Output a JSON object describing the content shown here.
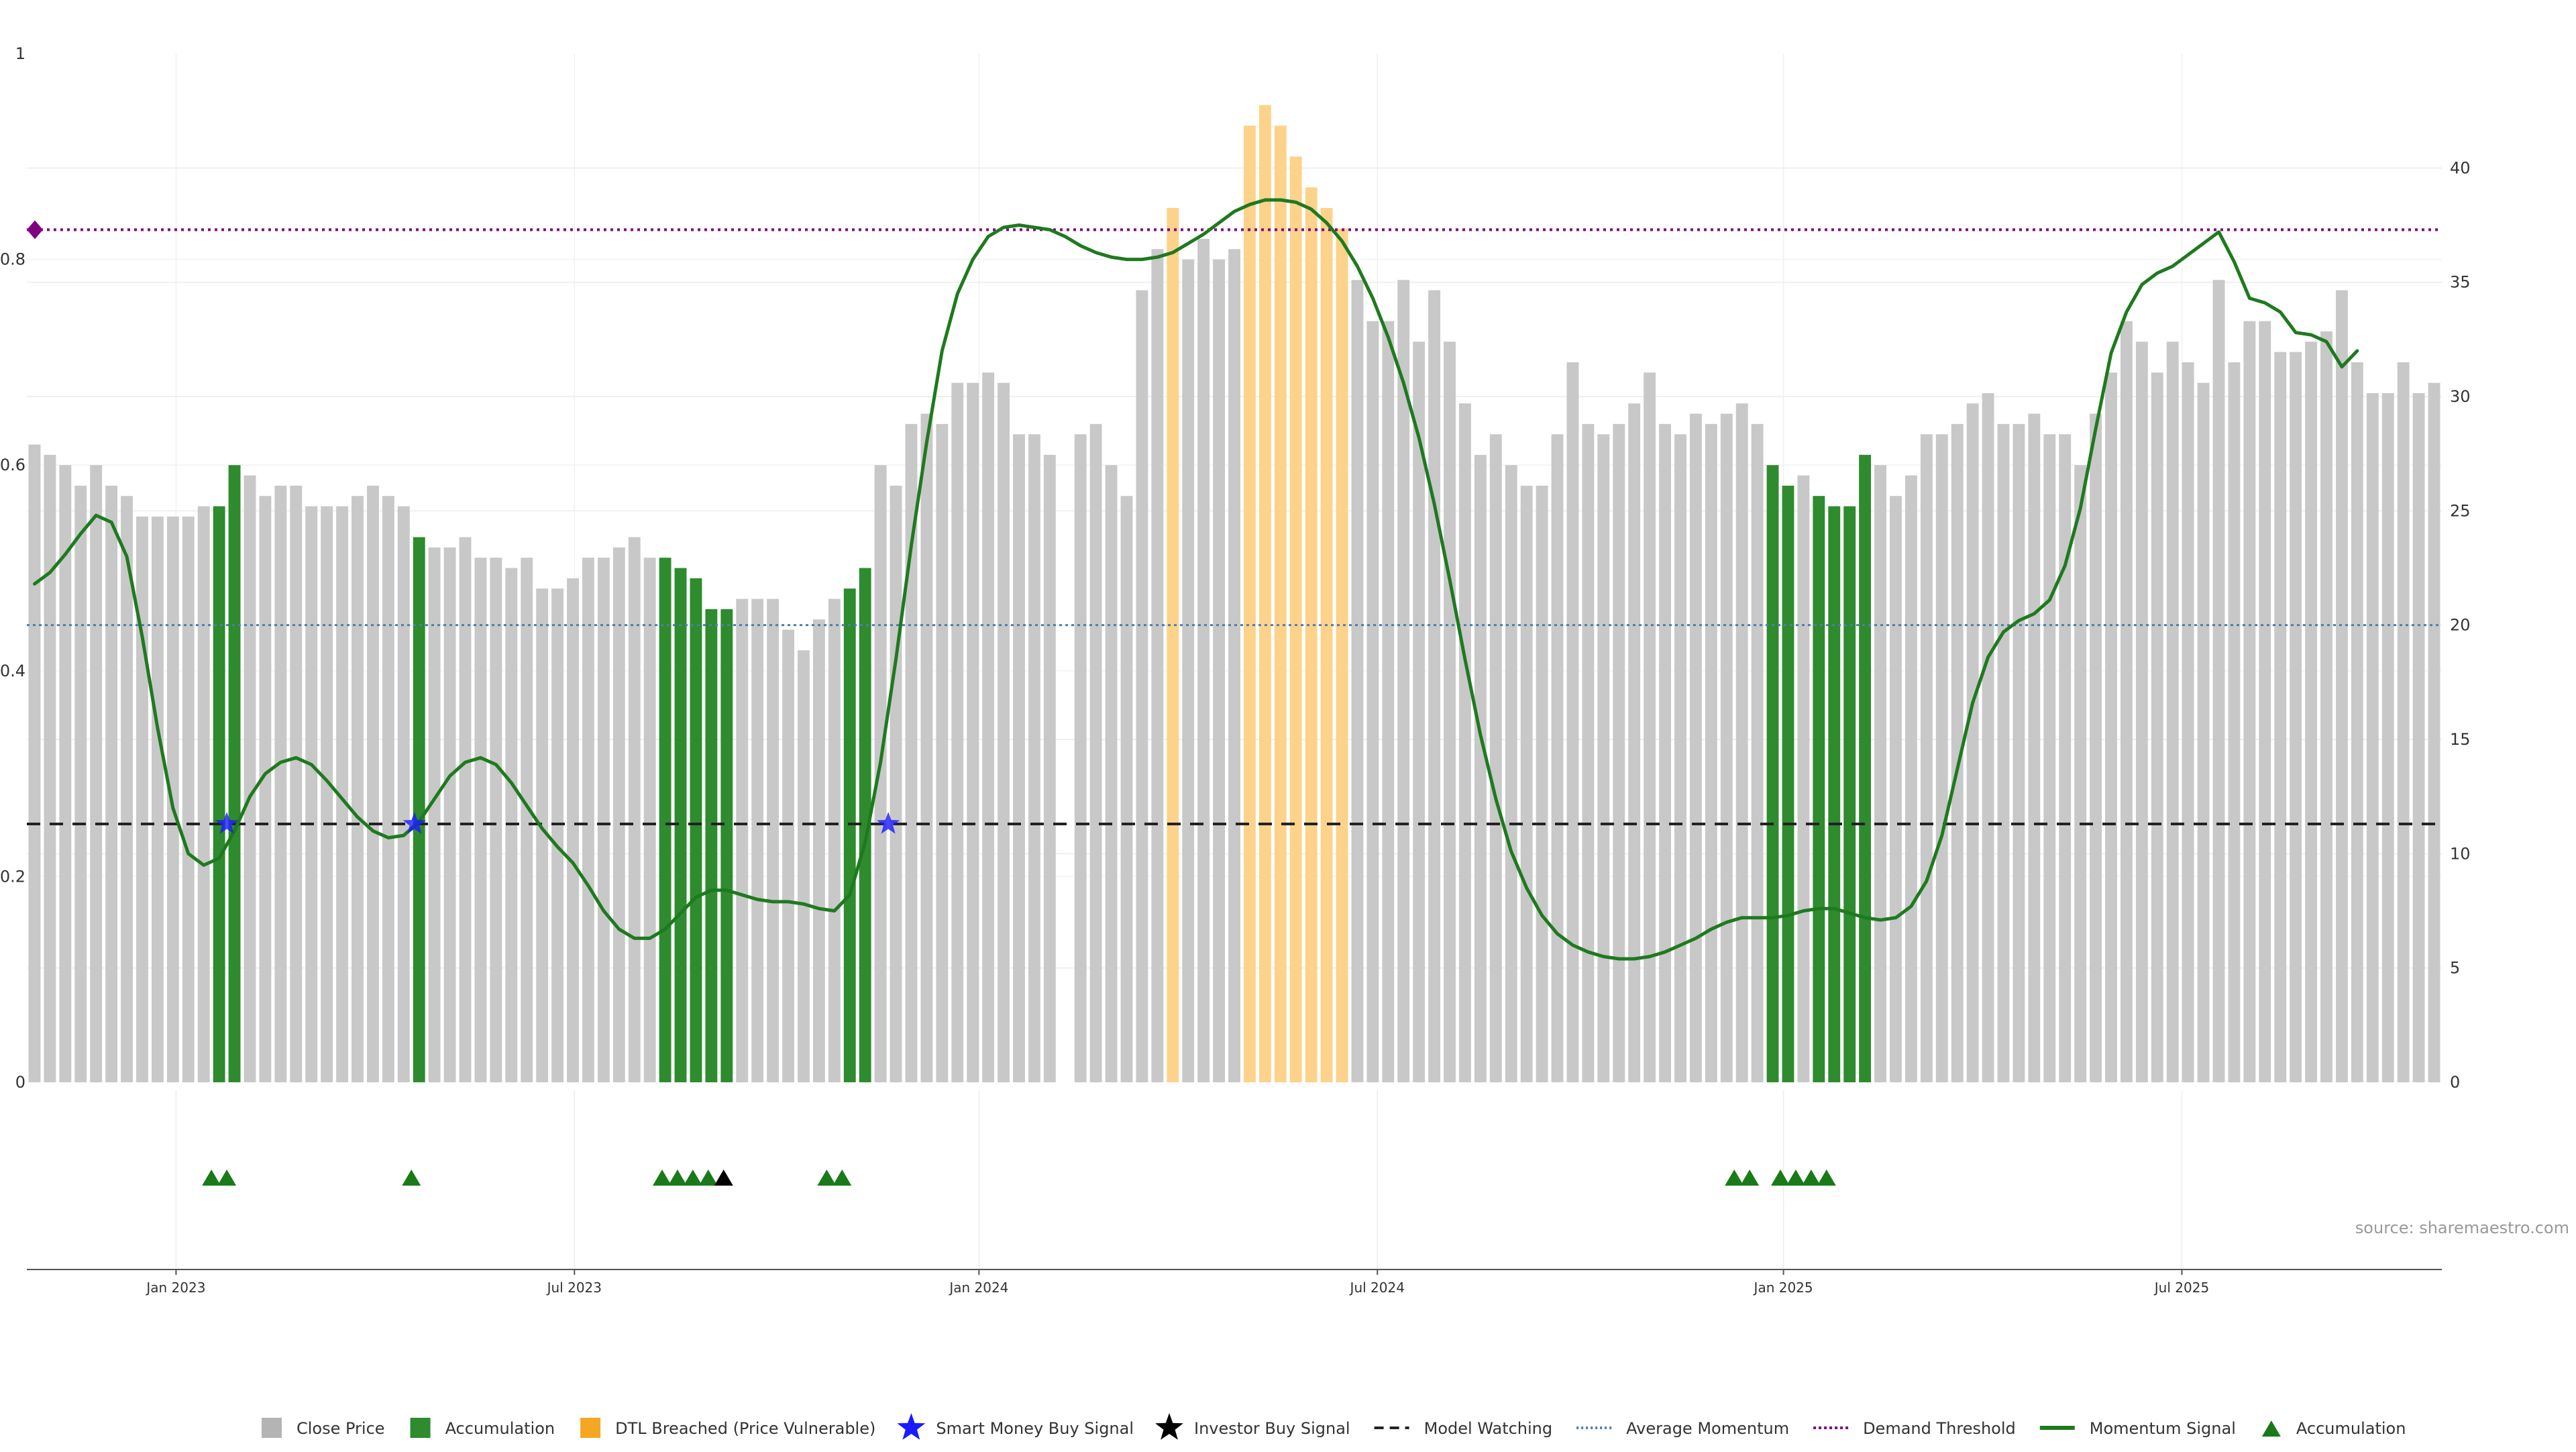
{
  "chart_data": {
    "type": "bar",
    "source": "source: sharemaestro.com",
    "y_left": {
      "range": [
        0,
        1
      ],
      "ticks": [
        "0",
        "0.2",
        "0.4",
        "0.6",
        "0.8",
        "1"
      ],
      "tick_values": [
        0,
        0.2,
        0.4,
        0.6,
        0.8,
        1
      ]
    },
    "y_right": {
      "range": [
        0,
        45
      ],
      "ticks": [
        "0",
        "5",
        "10",
        "15",
        "20",
        "25",
        "30",
        "35",
        "40"
      ],
      "tick_values": [
        0,
        5,
        10,
        15,
        20,
        25,
        30,
        35,
        40
      ]
    },
    "x_ticks": [
      {
        "label": "Jan 2023",
        "index": 9.2
      },
      {
        "label": "Jul 2023",
        "index": 35.1
      },
      {
        "label": "Jan 2024",
        "index": 61.4
      },
      {
        "label": "Jul 2024",
        "index": 87.3
      },
      {
        "label": "Jan 2025",
        "index": 113.7
      },
      {
        "label": "Jul 2025",
        "index": 139.6
      }
    ],
    "bars": [
      {
        "v": 0.62,
        "c": "gray"
      },
      {
        "v": 0.61,
        "c": "gray"
      },
      {
        "v": 0.6,
        "c": "gray"
      },
      {
        "v": 0.58,
        "c": "gray"
      },
      {
        "v": 0.6,
        "c": "gray"
      },
      {
        "v": 0.58,
        "c": "gray"
      },
      {
        "v": 0.57,
        "c": "gray"
      },
      {
        "v": 0.55,
        "c": "gray"
      },
      {
        "v": 0.55,
        "c": "gray"
      },
      {
        "v": 0.55,
        "c": "gray"
      },
      {
        "v": 0.55,
        "c": "gray"
      },
      {
        "v": 0.56,
        "c": "gray"
      },
      {
        "v": 0.56,
        "c": "green"
      },
      {
        "v": 0.6,
        "c": "green"
      },
      {
        "v": 0.59,
        "c": "gray"
      },
      {
        "v": 0.57,
        "c": "gray"
      },
      {
        "v": 0.58,
        "c": "gray"
      },
      {
        "v": 0.58,
        "c": "gray"
      },
      {
        "v": 0.56,
        "c": "gray"
      },
      {
        "v": 0.56,
        "c": "gray"
      },
      {
        "v": 0.56,
        "c": "gray"
      },
      {
        "v": 0.57,
        "c": "gray"
      },
      {
        "v": 0.58,
        "c": "gray"
      },
      {
        "v": 0.57,
        "c": "gray"
      },
      {
        "v": 0.56,
        "c": "gray"
      },
      {
        "v": 0.53,
        "c": "green"
      },
      {
        "v": 0.52,
        "c": "gray"
      },
      {
        "v": 0.52,
        "c": "gray"
      },
      {
        "v": 0.53,
        "c": "gray"
      },
      {
        "v": 0.51,
        "c": "gray"
      },
      {
        "v": 0.51,
        "c": "gray"
      },
      {
        "v": 0.5,
        "c": "gray"
      },
      {
        "v": 0.51,
        "c": "gray"
      },
      {
        "v": 0.48,
        "c": "gray"
      },
      {
        "v": 0.48,
        "c": "gray"
      },
      {
        "v": 0.49,
        "c": "gray"
      },
      {
        "v": 0.51,
        "c": "gray"
      },
      {
        "v": 0.51,
        "c": "gray"
      },
      {
        "v": 0.52,
        "c": "gray"
      },
      {
        "v": 0.53,
        "c": "gray"
      },
      {
        "v": 0.51,
        "c": "gray"
      },
      {
        "v": 0.51,
        "c": "green"
      },
      {
        "v": 0.5,
        "c": "green"
      },
      {
        "v": 0.49,
        "c": "green"
      },
      {
        "v": 0.46,
        "c": "green"
      },
      {
        "v": 0.46,
        "c": "green"
      },
      {
        "v": 0.47,
        "c": "gray"
      },
      {
        "v": 0.47,
        "c": "gray"
      },
      {
        "v": 0.47,
        "c": "gray"
      },
      {
        "v": 0.44,
        "c": "gray"
      },
      {
        "v": 0.42,
        "c": "gray"
      },
      {
        "v": 0.45,
        "c": "gray"
      },
      {
        "v": 0.47,
        "c": "gray"
      },
      {
        "v": 0.48,
        "c": "green"
      },
      {
        "v": 0.5,
        "c": "green"
      },
      {
        "v": 0.6,
        "c": "gray"
      },
      {
        "v": 0.58,
        "c": "gray"
      },
      {
        "v": 0.64,
        "c": "gray"
      },
      {
        "v": 0.65,
        "c": "gray"
      },
      {
        "v": 0.64,
        "c": "gray"
      },
      {
        "v": 0.68,
        "c": "gray"
      },
      {
        "v": 0.68,
        "c": "gray"
      },
      {
        "v": 0.69,
        "c": "gray"
      },
      {
        "v": 0.68,
        "c": "gray"
      },
      {
        "v": 0.63,
        "c": "gray"
      },
      {
        "v": 0.63,
        "c": "gray"
      },
      {
        "v": 0.61,
        "c": "gray"
      },
      {
        "v": 0,
        "c": "gray"
      },
      {
        "v": 0.63,
        "c": "gray"
      },
      {
        "v": 0.64,
        "c": "gray"
      },
      {
        "v": 0.6,
        "c": "gray"
      },
      {
        "v": 0.57,
        "c": "gray"
      },
      {
        "v": 0.77,
        "c": "gray"
      },
      {
        "v": 0.81,
        "c": "gray"
      },
      {
        "v": 0.85,
        "c": "orange"
      },
      {
        "v": 0.8,
        "c": "gray"
      },
      {
        "v": 0.82,
        "c": "gray"
      },
      {
        "v": 0.8,
        "c": "gray"
      },
      {
        "v": 0.81,
        "c": "gray"
      },
      {
        "v": 0.93,
        "c": "orange"
      },
      {
        "v": 0.95,
        "c": "orange"
      },
      {
        "v": 0.93,
        "c": "orange"
      },
      {
        "v": 0.9,
        "c": "orange"
      },
      {
        "v": 0.87,
        "c": "orange"
      },
      {
        "v": 0.85,
        "c": "orange"
      },
      {
        "v": 0.83,
        "c": "orange"
      },
      {
        "v": 0.78,
        "c": "gray"
      },
      {
        "v": 0.74,
        "c": "gray"
      },
      {
        "v": 0.74,
        "c": "gray"
      },
      {
        "v": 0.78,
        "c": "gray"
      },
      {
        "v": 0.72,
        "c": "gray"
      },
      {
        "v": 0.77,
        "c": "gray"
      },
      {
        "v": 0.72,
        "c": "gray"
      },
      {
        "v": 0.66,
        "c": "gray"
      },
      {
        "v": 0.61,
        "c": "gray"
      },
      {
        "v": 0.63,
        "c": "gray"
      },
      {
        "v": 0.6,
        "c": "gray"
      },
      {
        "v": 0.58,
        "c": "gray"
      },
      {
        "v": 0.58,
        "c": "gray"
      },
      {
        "v": 0.63,
        "c": "gray"
      },
      {
        "v": 0.7,
        "c": "gray"
      },
      {
        "v": 0.64,
        "c": "gray"
      },
      {
        "v": 0.63,
        "c": "gray"
      },
      {
        "v": 0.64,
        "c": "gray"
      },
      {
        "v": 0.66,
        "c": "gray"
      },
      {
        "v": 0.69,
        "c": "gray"
      },
      {
        "v": 0.64,
        "c": "gray"
      },
      {
        "v": 0.63,
        "c": "gray"
      },
      {
        "v": 0.65,
        "c": "gray"
      },
      {
        "v": 0.64,
        "c": "gray"
      },
      {
        "v": 0.65,
        "c": "gray"
      },
      {
        "v": 0.66,
        "c": "gray"
      },
      {
        "v": 0.64,
        "c": "gray"
      },
      {
        "v": 0.6,
        "c": "green"
      },
      {
        "v": 0.58,
        "c": "green"
      },
      {
        "v": 0.59,
        "c": "gray"
      },
      {
        "v": 0.57,
        "c": "green"
      },
      {
        "v": 0.56,
        "c": "green"
      },
      {
        "v": 0.56,
        "c": "green"
      },
      {
        "v": 0.61,
        "c": "green"
      },
      {
        "v": 0.6,
        "c": "gray"
      },
      {
        "v": 0.57,
        "c": "gray"
      },
      {
        "v": 0.59,
        "c": "gray"
      },
      {
        "v": 0.63,
        "c": "gray"
      },
      {
        "v": 0.63,
        "c": "gray"
      },
      {
        "v": 0.64,
        "c": "gray"
      },
      {
        "v": 0.66,
        "c": "gray"
      },
      {
        "v": 0.67,
        "c": "gray"
      },
      {
        "v": 0.64,
        "c": "gray"
      },
      {
        "v": 0.64,
        "c": "gray"
      },
      {
        "v": 0.65,
        "c": "gray"
      },
      {
        "v": 0.63,
        "c": "gray"
      },
      {
        "v": 0.63,
        "c": "gray"
      },
      {
        "v": 0.6,
        "c": "gray"
      },
      {
        "v": 0.65,
        "c": "gray"
      },
      {
        "v": 0.69,
        "c": "gray"
      },
      {
        "v": 0.74,
        "c": "gray"
      },
      {
        "v": 0.72,
        "c": "gray"
      },
      {
        "v": 0.69,
        "c": "gray"
      },
      {
        "v": 0.72,
        "c": "gray"
      },
      {
        "v": 0.7,
        "c": "gray"
      },
      {
        "v": 0.68,
        "c": "gray"
      },
      {
        "v": 0.78,
        "c": "gray"
      },
      {
        "v": 0.7,
        "c": "gray"
      },
      {
        "v": 0.74,
        "c": "gray"
      },
      {
        "v": 0.74,
        "c": "gray"
      },
      {
        "v": 0.71,
        "c": "gray"
      },
      {
        "v": 0.71,
        "c": "gray"
      },
      {
        "v": 0.72,
        "c": "gray"
      },
      {
        "v": 0.73,
        "c": "gray"
      },
      {
        "v": 0.77,
        "c": "gray"
      },
      {
        "v": 0.7,
        "c": "gray"
      },
      {
        "v": 0.67,
        "c": "gray"
      },
      {
        "v": 0.67,
        "c": "gray"
      },
      {
        "v": 0.7,
        "c": "gray"
      },
      {
        "v": 0.67,
        "c": "gray"
      },
      {
        "v": 0.68,
        "c": "gray"
      }
    ],
    "momentum_signal": [
      [
        0,
        21.8
      ],
      [
        1,
        22.3
      ],
      [
        2,
        23.1
      ],
      [
        3,
        24.0
      ],
      [
        4,
        24.8
      ],
      [
        5,
        24.5
      ],
      [
        6,
        23.0
      ],
      [
        7,
        19.5
      ],
      [
        8,
        15.5
      ],
      [
        9,
        12.0
      ],
      [
        10,
        10.0
      ],
      [
        11,
        9.5
      ],
      [
        12,
        9.8
      ],
      [
        13,
        11.0
      ],
      [
        14,
        12.5
      ],
      [
        15,
        13.5
      ],
      [
        16,
        14.0
      ],
      [
        17,
        14.2
      ],
      [
        18,
        13.9
      ],
      [
        19,
        13.2
      ],
      [
        20,
        12.4
      ],
      [
        21,
        11.6
      ],
      [
        22,
        11.0
      ],
      [
        23,
        10.7
      ],
      [
        24,
        10.8
      ],
      [
        25,
        11.4
      ],
      [
        26,
        12.4
      ],
      [
        27,
        13.4
      ],
      [
        28,
        14.0
      ],
      [
        29,
        14.2
      ],
      [
        30,
        13.9
      ],
      [
        31,
        13.1
      ],
      [
        32,
        12.1
      ],
      [
        33,
        11.1
      ],
      [
        34,
        10.3
      ],
      [
        35,
        9.6
      ],
      [
        36,
        8.6
      ],
      [
        37,
        7.5
      ],
      [
        38,
        6.7
      ],
      [
        39,
        6.3
      ],
      [
        40,
        6.3
      ],
      [
        41,
        6.7
      ],
      [
        42,
        7.4
      ],
      [
        43,
        8.1
      ],
      [
        44,
        8.4
      ],
      [
        45,
        8.4
      ],
      [
        46,
        8.2
      ],
      [
        47,
        8.0
      ],
      [
        48,
        7.9
      ],
      [
        49,
        7.9
      ],
      [
        50,
        7.8
      ],
      [
        51,
        7.6
      ],
      [
        52,
        7.5
      ],
      [
        53,
        8.2
      ],
      [
        54,
        10.5
      ],
      [
        55,
        14.0
      ],
      [
        56,
        18.5
      ],
      [
        57,
        23.5
      ],
      [
        58,
        28.0
      ],
      [
        59,
        32.0
      ],
      [
        60,
        34.5
      ],
      [
        61,
        36.0
      ],
      [
        62,
        37.0
      ],
      [
        63,
        37.4
      ],
      [
        64,
        37.5
      ],
      [
        65,
        37.4
      ],
      [
        66,
        37.3
      ],
      [
        67,
        37.0
      ],
      [
        68,
        36.6
      ],
      [
        69,
        36.3
      ],
      [
        70,
        36.1
      ],
      [
        71,
        36.0
      ],
      [
        72,
        36.0
      ],
      [
        73,
        36.1
      ],
      [
        74,
        36.3
      ],
      [
        75,
        36.7
      ],
      [
        76,
        37.1
      ],
      [
        77,
        37.6
      ],
      [
        78,
        38.1
      ],
      [
        79,
        38.4
      ],
      [
        80,
        38.6
      ],
      [
        81,
        38.6
      ],
      [
        82,
        38.5
      ],
      [
        83,
        38.2
      ],
      [
        84,
        37.6
      ],
      [
        85,
        36.8
      ],
      [
        86,
        35.7
      ],
      [
        87,
        34.3
      ],
      [
        88,
        32.6
      ],
      [
        89,
        30.6
      ],
      [
        90,
        28.2
      ],
      [
        91,
        25.3
      ],
      [
        92,
        22.0
      ],
      [
        93,
        18.5
      ],
      [
        94,
        15.2
      ],
      [
        95,
        12.4
      ],
      [
        96,
        10.1
      ],
      [
        97,
        8.5
      ],
      [
        98,
        7.3
      ],
      [
        99,
        6.5
      ],
      [
        100,
        6.0
      ],
      [
        101,
        5.7
      ],
      [
        102,
        5.5
      ],
      [
        103,
        5.4
      ],
      [
        104,
        5.4
      ],
      [
        105,
        5.5
      ],
      [
        106,
        5.7
      ],
      [
        107,
        6.0
      ],
      [
        108,
        6.3
      ],
      [
        109,
        6.7
      ],
      [
        110,
        7.0
      ],
      [
        111,
        7.2
      ],
      [
        112,
        7.2
      ],
      [
        113,
        7.2
      ],
      [
        114,
        7.3
      ],
      [
        115,
        7.5
      ],
      [
        116,
        7.6
      ],
      [
        117,
        7.6
      ],
      [
        118,
        7.4
      ],
      [
        119,
        7.2
      ],
      [
        120,
        7.1
      ],
      [
        121,
        7.2
      ],
      [
        122,
        7.7
      ],
      [
        123,
        8.8
      ],
      [
        124,
        10.8
      ],
      [
        125,
        13.7
      ],
      [
        126,
        16.6
      ],
      [
        127,
        18.6
      ],
      [
        128,
        19.7
      ],
      [
        129,
        20.2
      ],
      [
        130,
        20.5
      ],
      [
        131,
        21.1
      ],
      [
        132,
        22.6
      ],
      [
        133,
        25.1
      ],
      [
        134,
        28.6
      ],
      [
        135,
        31.9
      ],
      [
        136,
        33.7
      ],
      [
        137,
        34.9
      ],
      [
        138,
        35.4
      ],
      [
        139,
        35.7
      ],
      [
        140,
        36.2
      ],
      [
        141,
        36.7
      ],
      [
        142,
        37.2
      ],
      [
        143,
        35.9
      ],
      [
        144,
        34.3
      ],
      [
        145,
        34.1
      ],
      [
        146,
        33.7
      ],
      [
        147,
        32.8
      ],
      [
        148,
        32.7
      ],
      [
        149,
        32.4
      ],
      [
        150,
        31.3
      ],
      [
        151,
        32.0
      ]
    ],
    "demand_threshold": 37.3,
    "average_momentum": 20.0,
    "model_watching": 11.3,
    "smart_money_signals": [
      12.5,
      24.7,
      55.5
    ],
    "accumulation_markers": [
      11.5,
      12.5,
      24.5,
      40.8,
      41.8,
      42.8,
      43.8,
      51.5,
      52.5,
      110.5,
      111.5,
      113.5,
      114.5,
      115.5,
      116.5
    ],
    "investor_buy_markers": [
      44.8
    ],
    "legend": [
      {
        "label": "Close Price",
        "kind": "square",
        "color": "#b4b4b4"
      },
      {
        "label": "Accumulation",
        "kind": "square",
        "color": "#2e8b2e"
      },
      {
        "label": "DTL Breached (Price Vulnerable)",
        "kind": "square",
        "color": "#f5a623"
      },
      {
        "label": "Smart Money Buy Signal",
        "kind": "star",
        "color": "#1a1aff"
      },
      {
        "label": "Investor Buy Signal",
        "kind": "star",
        "color": "#000000"
      },
      {
        "label": "Model Watching",
        "kind": "dash",
        "color": "#222222"
      },
      {
        "label": "Average Momentum",
        "kind": "dot",
        "color": "#4a7fb0"
      },
      {
        "label": "Demand Threshold",
        "kind": "dotted",
        "color": "#800080"
      },
      {
        "label": "Momentum Signal",
        "kind": "line",
        "color": "#1e7a1e"
      },
      {
        "label": "Accumulation",
        "kind": "triangle",
        "color": "#1a7a1a"
      }
    ],
    "colors": {
      "gray": "#c8c8c8",
      "green": "#2e8b2e",
      "orange": "#fdd28a",
      "momentum": "#1e7a1e",
      "threshold": "#800080",
      "average": "#4a7fb0",
      "watching": "#222222",
      "smart": "#1a1aff",
      "investor": "#000000",
      "marker": "#1a7a1a"
    }
  }
}
